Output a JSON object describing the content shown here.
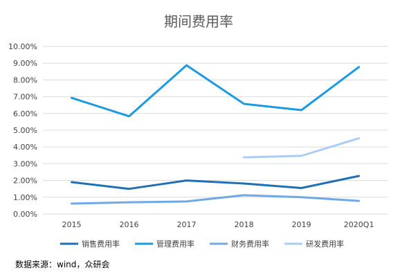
{
  "chart_data": {
    "type": "line",
    "title": "期间费用率",
    "categories": [
      "2015",
      "2016",
      "2017",
      "2018",
      "2019",
      "2020Q1"
    ],
    "y_ticks": [
      "0.00%",
      "1.00%",
      "2.00%",
      "3.00%",
      "4.00%",
      "5.00%",
      "6.00%",
      "7.00%",
      "8.00%",
      "9.00%",
      "10.00%"
    ],
    "ylim": [
      0,
      10
    ],
    "y_unit": "%",
    "grid": true,
    "legend_position": "bottom",
    "series": [
      {
        "name": "销售费用率",
        "color": "#1f6fb4",
        "values": [
          1.9,
          1.5,
          2.0,
          1.82,
          1.55,
          2.27
        ]
      },
      {
        "name": "管理费用率",
        "color": "#1a9ae3",
        "values": [
          6.93,
          5.83,
          8.87,
          6.57,
          6.2,
          8.77
        ]
      },
      {
        "name": "财务费用率",
        "color": "#6fa8e6",
        "values": [
          0.62,
          0.7,
          0.75,
          1.12,
          1.0,
          0.78
        ]
      },
      {
        "name": "研发费用率",
        "color": "#a9cdf6",
        "values": [
          null,
          null,
          null,
          3.38,
          3.47,
          4.52
        ]
      }
    ]
  },
  "footer": {
    "source": "数据来源：wind，众研会"
  }
}
